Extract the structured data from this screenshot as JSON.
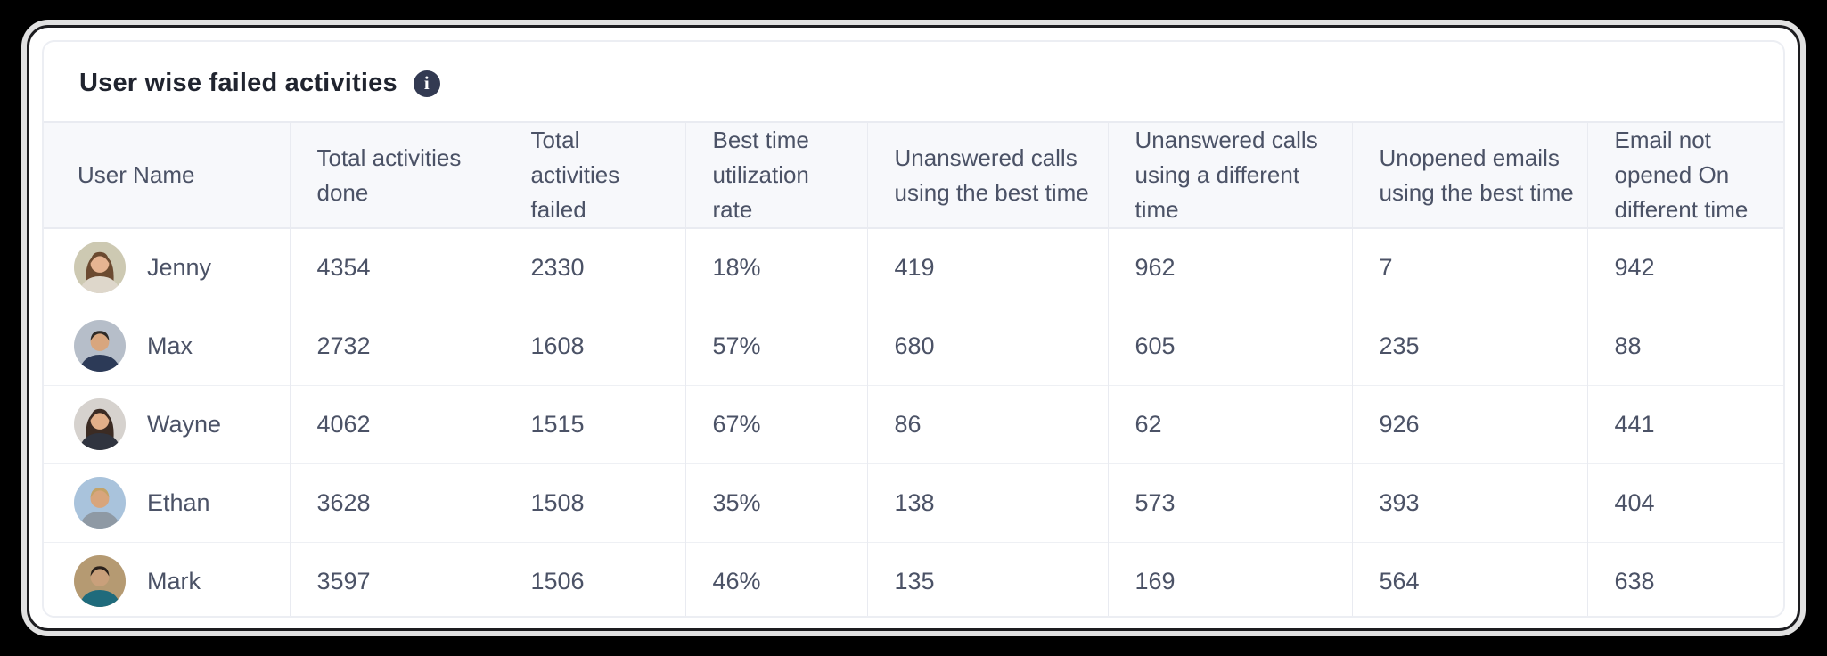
{
  "card": {
    "title": "User wise failed activities",
    "info_icon": {
      "name": "info-icon",
      "glyph": "i"
    }
  },
  "colors": {
    "panel_border": "#eceef3",
    "header_bg": "#f7f8fb",
    "grid_line": "#e9ebf1",
    "text": "#4b5266",
    "title_text": "#20242f",
    "info_badge_bg": "#333a52",
    "frame_border": "#1d1d20"
  },
  "table": {
    "columns": [
      {
        "id": "user_name",
        "label": "User Name"
      },
      {
        "id": "total_done",
        "label": "Total activities done"
      },
      {
        "id": "total_failed",
        "label": "Total activities failed"
      },
      {
        "id": "best_time_rate",
        "label": "Best time utilization rate"
      },
      {
        "id": "unanswered_best",
        "label": "Unanswered calls using the best time"
      },
      {
        "id": "unanswered_diff",
        "label": "Unanswered calls using a different time"
      },
      {
        "id": "unopened_best",
        "label": "Unopened emails using the best time"
      },
      {
        "id": "email_not_opened",
        "label": "Email not opened On different time"
      }
    ],
    "rows": [
      {
        "name": "Jenny",
        "avatar": {
          "bg": "#cdc9b2",
          "hair": "#6b4a30",
          "skin": "#e6b492",
          "shirt": "#ded7cb",
          "hair_style": "long"
        },
        "values": [
          "4354",
          "2330",
          "18%",
          "419",
          "962",
          "7",
          "942"
        ]
      },
      {
        "name": "Max",
        "avatar": {
          "bg": "#b6bec9",
          "hair": "#2e2a26",
          "skin": "#d8a67e",
          "shirt": "#2c3a57",
          "hair_style": "short"
        },
        "values": [
          "2732",
          "1608",
          "57%",
          "680",
          "605",
          "235",
          "88"
        ]
      },
      {
        "name": "Wayne",
        "avatar": {
          "bg": "#d6d2ce",
          "hair": "#3b2b23",
          "skin": "#e2af89",
          "shirt": "#30343f",
          "hair_style": "long"
        },
        "values": [
          "4062",
          "1515",
          "67%",
          "86",
          "62",
          "926",
          "441"
        ]
      },
      {
        "name": "Ethan",
        "avatar": {
          "bg": "#a9c3dc",
          "hair": "#c3a267",
          "skin": "#d8a57c",
          "shirt": "#8e99a4",
          "hair_style": "short"
        },
        "values": [
          "3628",
          "1508",
          "35%",
          "138",
          "573",
          "393",
          "404"
        ]
      },
      {
        "name": "Mark",
        "avatar": {
          "bg": "#b59a72",
          "hair": "#2a211b",
          "skin": "#c9a07b",
          "shirt": "#1f6b7c",
          "hair_style": "short"
        },
        "values": [
          "3597",
          "1506",
          "46%",
          "135",
          "169",
          "564",
          "638"
        ]
      }
    ]
  }
}
